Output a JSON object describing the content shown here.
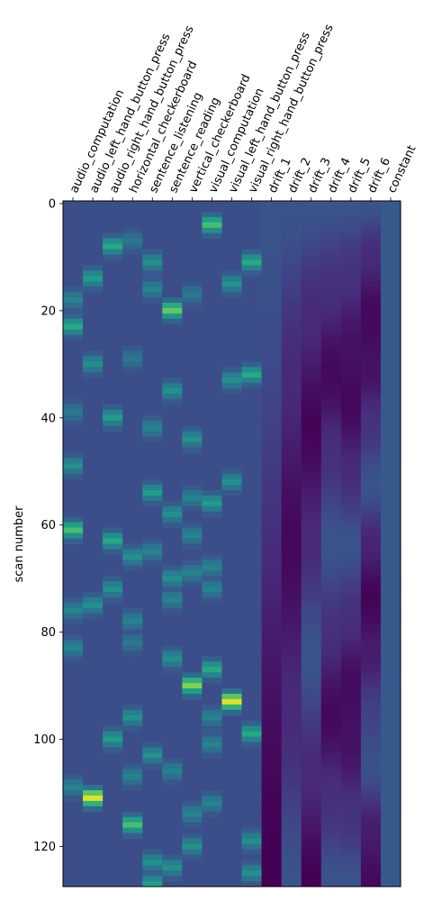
{
  "chart_data": {
    "type": "heatmap",
    "columns": [
      "audio_computation",
      "audio_left_hand_button_press",
      "audio_right_hand_button_press",
      "horizontal_checkerboard",
      "sentence_listening",
      "sentence_reading",
      "vertical_checkerboard",
      "visual_computation",
      "visual_left_hand_button_press",
      "visual_right_hand_button_press",
      "drift_1",
      "drift_2",
      "drift_3",
      "drift_4",
      "drift_5",
      "drift_6",
      "constant"
    ],
    "ylabel": "scan number",
    "yticks": [
      0,
      20,
      40,
      60,
      80,
      100,
      120
    ],
    "n_scans": 128,
    "ylim": [
      0,
      128
    ],
    "colormap": [
      "#440154",
      "#482878",
      "#3e4989",
      "#31688e",
      "#26828e",
      "#1f9e89",
      "#35b779",
      "#6ece58",
      "#b5de2b",
      "#fde725"
    ],
    "background_color": "#3b4e8a",
    "events": {
      "audio_computation": [
        [
          17,
          0.45
        ],
        [
          22,
          0.6
        ],
        [
          38,
          0.4
        ],
        [
          48,
          0.5
        ],
        [
          60,
          0.7
        ],
        [
          75,
          0.45
        ],
        [
          82,
          0.45
        ],
        [
          108,
          0.45
        ]
      ],
      "audio_left_hand_button_press": [
        [
          13,
          0.55
        ],
        [
          29,
          0.5
        ],
        [
          74,
          0.5
        ],
        [
          110,
          0.95
        ]
      ],
      "audio_right_hand_button_press": [
        [
          7,
          0.6
        ],
        [
          39,
          0.55
        ],
        [
          62,
          0.6
        ],
        [
          71,
          0.5
        ],
        [
          99,
          0.55
        ]
      ],
      "horizontal_checkerboard": [
        [
          6,
          0.4
        ],
        [
          28,
          0.4
        ],
        [
          65,
          0.5
        ],
        [
          77,
          0.45
        ],
        [
          81,
          0.4
        ],
        [
          95,
          0.5
        ],
        [
          106,
          0.45
        ],
        [
          115,
          0.7
        ]
      ],
      "sentence_listening": [
        [
          10,
          0.5
        ],
        [
          15,
          0.45
        ],
        [
          41,
          0.45
        ],
        [
          53,
          0.55
        ],
        [
          64,
          0.45
        ],
        [
          102,
          0.5
        ],
        [
          122,
          0.5
        ],
        [
          126,
          0.55
        ]
      ],
      "sentence_reading": [
        [
          19,
          0.75
        ],
        [
          34,
          0.5
        ],
        [
          57,
          0.5
        ],
        [
          69,
          0.5
        ],
        [
          73,
          0.45
        ],
        [
          84,
          0.5
        ],
        [
          105,
          0.45
        ],
        [
          123,
          0.5
        ]
      ],
      "vertical_checkerboard": [
        [
          16,
          0.4
        ],
        [
          43,
          0.5
        ],
        [
          54,
          0.45
        ],
        [
          61,
          0.45
        ],
        [
          68,
          0.45
        ],
        [
          89,
          0.8
        ],
        [
          113,
          0.45
        ],
        [
          119,
          0.5
        ]
      ],
      "visual_computation": [
        [
          3,
          0.7
        ],
        [
          55,
          0.55
        ],
        [
          67,
          0.45
        ],
        [
          71,
          0.45
        ],
        [
          86,
          0.6
        ],
        [
          95,
          0.45
        ],
        [
          100,
          0.45
        ],
        [
          111,
          0.45
        ]
      ],
      "visual_left_hand_button_press": [
        [
          14,
          0.5
        ],
        [
          32,
          0.5
        ],
        [
          51,
          0.5
        ],
        [
          92,
          0.95
        ]
      ],
      "visual_right_hand_button_press": [
        [
          10,
          0.6
        ],
        [
          31,
          0.6
        ],
        [
          98,
          0.6
        ],
        [
          118,
          0.5
        ],
        [
          124,
          0.5
        ]
      ]
    },
    "drift_profiles": {
      "drift_1": [
        [
          0,
          0.26
        ],
        [
          128,
          0.0
        ]
      ],
      "drift_2": [
        [
          0,
          0.26
        ],
        [
          32,
          0.12
        ],
        [
          64,
          0.02
        ],
        [
          96,
          0.12
        ],
        [
          128,
          0.26
        ]
      ],
      "drift_3": [
        [
          0,
          0.26
        ],
        [
          21,
          0.12
        ],
        [
          42,
          0.01
        ],
        [
          64,
          0.12
        ],
        [
          85,
          0.26
        ],
        [
          106,
          0.12
        ],
        [
          128,
          0.0
        ]
      ],
      "drift_4": [
        [
          0,
          0.26
        ],
        [
          16,
          0.14
        ],
        [
          32,
          0.02
        ],
        [
          48,
          0.14
        ],
        [
          64,
          0.26
        ],
        [
          80,
          0.14
        ],
        [
          96,
          0.02
        ],
        [
          112,
          0.14
        ],
        [
          128,
          0.26
        ]
      ],
      "drift_5": [
        [
          0,
          0.26
        ],
        [
          13,
          0.15
        ],
        [
          26,
          0.05
        ],
        [
          38,
          0.02
        ],
        [
          51,
          0.12
        ],
        [
          64,
          0.26
        ],
        [
          77,
          0.14
        ],
        [
          90,
          0.03
        ],
        [
          102,
          0.05
        ],
        [
          115,
          0.15
        ],
        [
          128,
          0.26
        ]
      ],
      "drift_6": [
        [
          0,
          0.26
        ],
        [
          10,
          0.12
        ],
        [
          21,
          0.02
        ],
        [
          32,
          0.05
        ],
        [
          42,
          0.15
        ],
        [
          53,
          0.26
        ],
        [
          64,
          0.1
        ],
        [
          74,
          0.01
        ],
        [
          85,
          0.08
        ],
        [
          96,
          0.2
        ],
        [
          106,
          0.25
        ],
        [
          117,
          0.08
        ],
        [
          128,
          0.02
        ]
      ],
      "constant": [
        [
          0,
          0.28
        ],
        [
          128,
          0.28
        ]
      ]
    }
  }
}
